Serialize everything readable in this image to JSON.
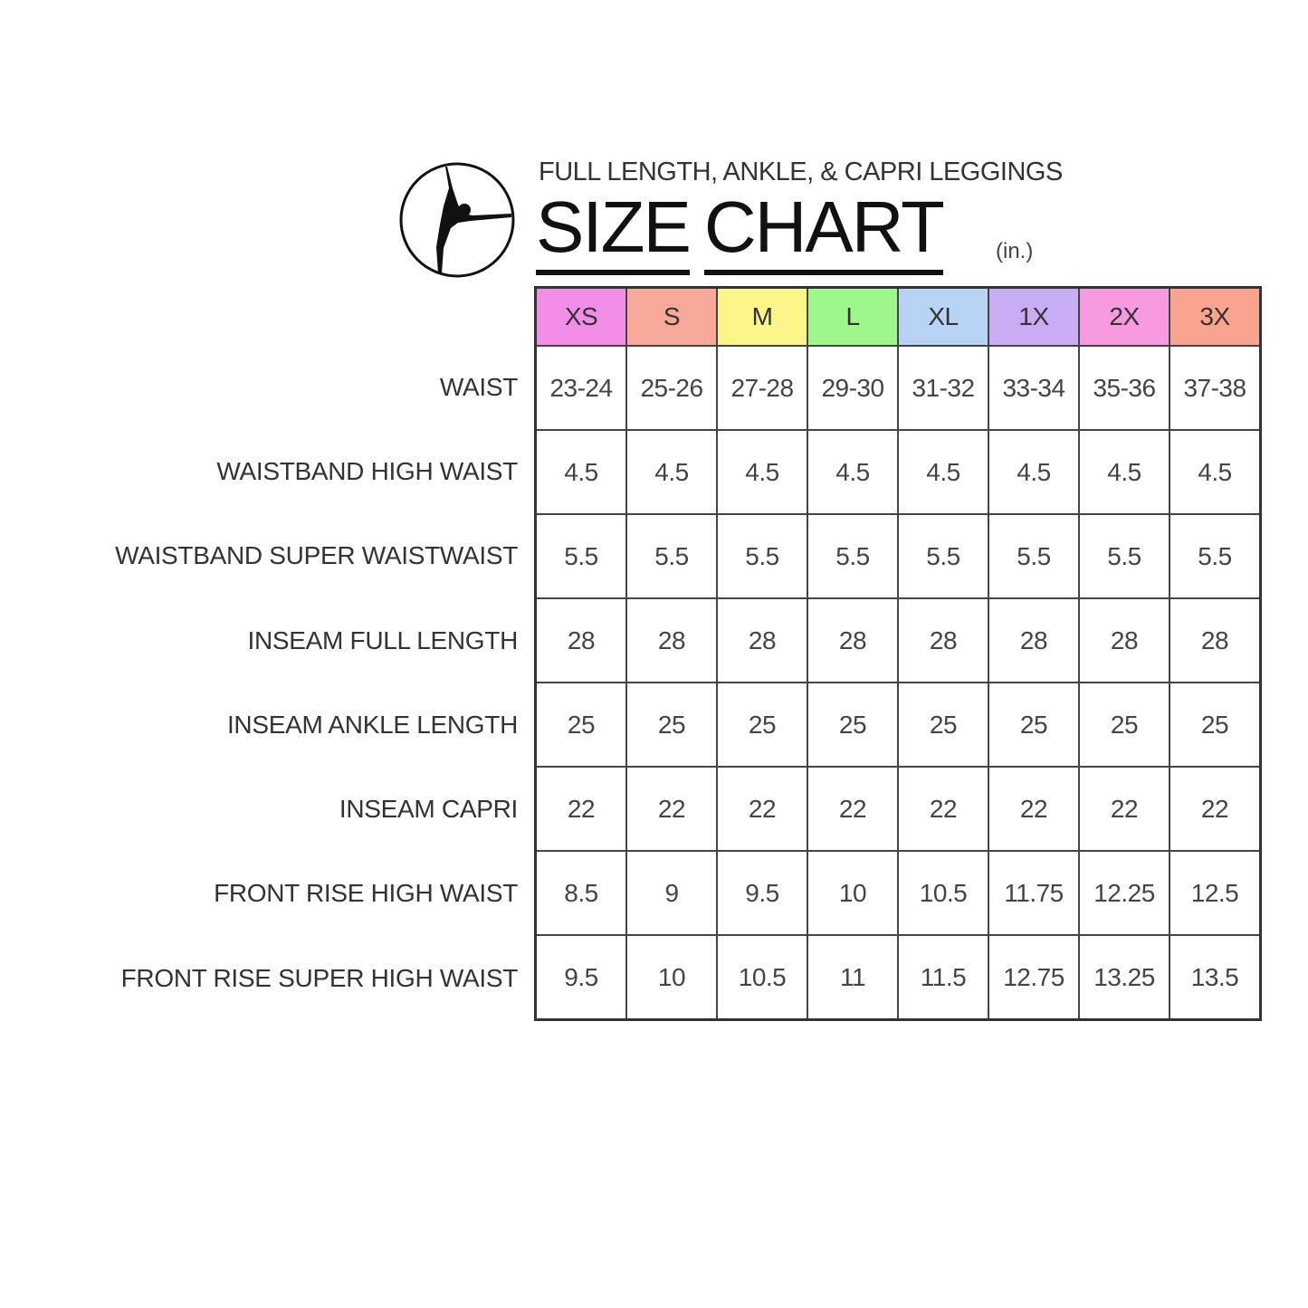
{
  "header": {
    "subtitle": "FULL LENGTH, ANKLE, & CAPRI LEGGINGS",
    "title_word1": "SIZE",
    "title_word2": "CHART",
    "unit": "(in.)",
    "logo_icon": "gymnast-silhouette-circle-icon"
  },
  "sizes": [
    {
      "label": "XS",
      "color": "#f38ee8"
    },
    {
      "label": "S",
      "color": "#f9a99a"
    },
    {
      "label": "M",
      "color": "#fbf58a"
    },
    {
      "label": "L",
      "color": "#9ef78a"
    },
    {
      "label": "XL",
      "color": "#b9d3f5"
    },
    {
      "label": "1X",
      "color": "#c9adf4"
    },
    {
      "label": "2X",
      "color": "#f79ae0"
    },
    {
      "label": "3X",
      "color": "#f8a48e"
    }
  ],
  "rows": [
    {
      "label": "WAIST",
      "values": [
        "23-24",
        "25-26",
        "27-28",
        "29-30",
        "31-32",
        "33-34",
        "35-36",
        "37-38"
      ]
    },
    {
      "label": "WAISTBAND HIGH WAIST",
      "values": [
        "4.5",
        "4.5",
        "4.5",
        "4.5",
        "4.5",
        "4.5",
        "4.5",
        "4.5"
      ]
    },
    {
      "label": "WAISTBAND SUPER WAISTWAIST",
      "values": [
        "5.5",
        "5.5",
        "5.5",
        "5.5",
        "5.5",
        "5.5",
        "5.5",
        "5.5"
      ]
    },
    {
      "label": "INSEAM FULL LENGTH",
      "values": [
        "28",
        "28",
        "28",
        "28",
        "28",
        "28",
        "28",
        "28"
      ]
    },
    {
      "label": "INSEAM ANKLE LENGTH",
      "values": [
        "25",
        "25",
        "25",
        "25",
        "25",
        "25",
        "25",
        "25"
      ]
    },
    {
      "label": "INSEAM CAPRI",
      "values": [
        "22",
        "22",
        "22",
        "22",
        "22",
        "22",
        "22",
        "22"
      ]
    },
    {
      "label": "FRONT RISE HIGH WAIST",
      "values": [
        "8.5",
        "9",
        "9.5",
        "10",
        "10.5",
        "11.75",
        "12.25",
        "12.5"
      ]
    },
    {
      "label": "FRONT RISE SUPER HIGH WAIST",
      "values": [
        "9.5",
        "10",
        "10.5",
        "11",
        "11.5",
        "12.75",
        "13.25",
        "13.5"
      ]
    }
  ]
}
